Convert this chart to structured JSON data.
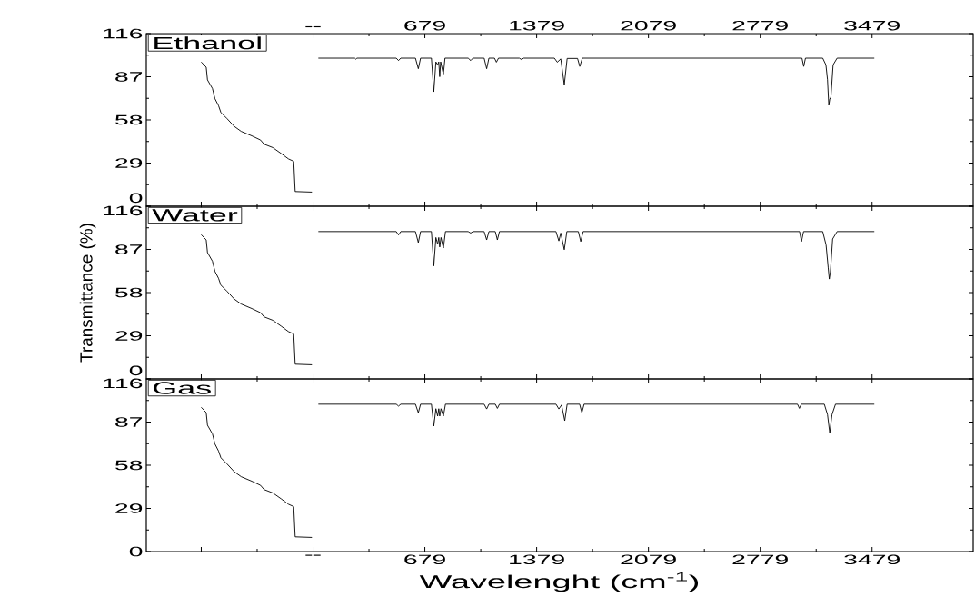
{
  "chart_data": [
    {
      "type": "line",
      "title": "Ethanol",
      "xlim": [
        -1065,
        4112
      ],
      "ylim": [
        0,
        116
      ],
      "yticks": [
        0,
        29,
        58,
        87,
        116
      ],
      "tick_labels": "y",
      "x2lim": [
        -1065,
        4112
      ],
      "x2ticks": [
        {
          "value": -721,
          "label": null
        },
        {
          "value": -21,
          "label": "--"
        },
        679,
        1379,
        2079,
        2779,
        3479
      ],
      "series": [
        {
          "color": "#000000",
          "x": [
            -721,
            -690,
            -682,
            -651,
            -635,
            -613,
            -598,
            -559,
            -515,
            -471,
            -405,
            -350,
            -328,
            -273,
            -219,
            -175,
            -142,
            -133,
            -28
          ],
          "values": [
            96.9,
            93.4,
            84.9,
            79.1,
            72.2,
            67.6,
            63.0,
            58.8,
            53.7,
            50.3,
            47.3,
            44.5,
            41.7,
            39.4,
            35.3,
            31.8,
            30.2,
            9.9,
            9.5
          ]
        },
        {
          "color": "#000000",
          "x": [
            12,
            240,
            247,
            254,
            500,
            514,
            528,
            620,
            638,
            652,
            720,
            735,
            748,
            759,
            766,
            772,
            778,
            795,
            805,
            950,
            966,
            980,
            1050,
            1066,
            1080,
            1115,
            1127,
            1140,
            1270,
            1284,
            1298,
            1490,
            1508,
            1530,
            1552,
            1570,
            1635,
            1649,
            1665,
            3040,
            3051,
            3062,
            3170,
            3190,
            3200,
            3208,
            3214,
            3221,
            3235,
            3260,
            3493
          ],
          "values": [
            99.5,
            99.5,
            98.8,
            99.5,
            99.5,
            97.9,
            99.5,
            99.5,
            92.4,
            99.5,
            99.5,
            76.9,
            97,
            95,
            97,
            87,
            97,
            88.8,
            99.5,
            99.5,
            97.9,
            99.5,
            99.5,
            92.4,
            99.5,
            99.5,
            96.8,
            99.5,
            99.5,
            98.6,
            99.5,
            99.5,
            96.8,
            99,
            81.6,
            99.3,
            99.3,
            93.9,
            99.5,
            99.5,
            93.9,
            99.5,
            99.5,
            95,
            85,
            67.8,
            72,
            73.2,
            95,
            99.5,
            99.5
          ]
        }
      ]
    },
    {
      "type": "line",
      "title": "Water",
      "ylabel": "Transmittance (%)",
      "xlim": [
        -1065,
        4112
      ],
      "ylim": [
        0,
        116
      ],
      "yticks": [
        0,
        29,
        58,
        87,
        116
      ],
      "tick_labels": "y",
      "series": [
        {
          "color": "#000000",
          "x": [
            -721,
            -690,
            -682,
            -651,
            -635,
            -613,
            -598,
            -559,
            -515,
            -471,
            -405,
            -350,
            -328,
            -273,
            -219,
            -175,
            -142,
            -133,
            -28
          ],
          "values": [
            96.9,
            93.4,
            84.9,
            79.1,
            72.2,
            67.6,
            63.0,
            58.8,
            53.7,
            50.3,
            47.3,
            44.5,
            41.7,
            39.4,
            35.3,
            31.8,
            30.2,
            9.9,
            9.5
          ]
        },
        {
          "color": "#000000",
          "x": [
            12,
            500,
            514,
            528,
            620,
            638,
            652,
            720,
            735,
            748,
            759,
            766,
            772,
            780,
            795,
            808,
            950,
            966,
            980,
            1050,
            1066,
            1080,
            1120,
            1133,
            1146,
            1500,
            1518,
            1530,
            1552,
            1568,
            1640,
            1655,
            1670,
            3025,
            3037,
            3050,
            3170,
            3191,
            3204,
            3211,
            3218,
            3232,
            3260,
            3493
          ],
          "values": [
            99,
            99,
            96.7,
            99,
            99,
            91.6,
            99,
            99,
            75.9,
            95,
            90.5,
            95,
            88.6,
            95,
            87.9,
            99,
            99,
            98,
            99,
            99,
            93.4,
            99,
            99,
            93.4,
            99,
            99,
            92.7,
            98,
            86.8,
            99,
            99,
            92.3,
            99,
            99,
            92.3,
            99,
            99,
            90,
            75,
            67.1,
            72,
            94,
            99,
            99
          ]
        }
      ]
    },
    {
      "type": "line",
      "title": "Gas",
      "xlabel": "Wavelenght (cm$^{-1}$)",
      "xlim": [
        -1065,
        4112
      ],
      "ylim": [
        0,
        116
      ],
      "yticks": [
        0,
        29,
        58,
        87,
        116
      ],
      "xticks": [
        {
          "value": -721,
          "label": null
        },
        {
          "value": -21,
          "label": "--"
        },
        679,
        1379,
        2079,
        2779,
        3479
      ],
      "series": [
        {
          "color": "#000000",
          "x": [
            -721,
            -690,
            -682,
            -651,
            -635,
            -613,
            -598,
            -559,
            -515,
            -471,
            -405,
            -350,
            -328,
            -273,
            -219,
            -175,
            -142,
            -133,
            -28
          ],
          "values": [
            96.9,
            93.4,
            84.9,
            79.1,
            72.2,
            67.6,
            63.0,
            58.8,
            53.7,
            50.3,
            47.3,
            44.5,
            41.7,
            39.4,
            35.3,
            31.8,
            30.2,
            9.9,
            9.5
          ]
        },
        {
          "color": "#000000",
          "x": [
            12,
            500,
            514,
            528,
            620,
            638,
            652,
            720,
            735,
            748,
            759,
            766,
            772,
            780,
            795,
            808,
            1050,
            1066,
            1080,
            1120,
            1133,
            1146,
            1500,
            1518,
            1535,
            1555,
            1570,
            1648,
            1662,
            1676,
            3012,
            3024,
            3036,
            3180,
            3200,
            3214,
            3228,
            3250,
            3493
          ],
          "values": [
            99,
            99,
            97.7,
            99,
            99,
            93.3,
            99,
            99,
            84.3,
            96,
            91,
            96,
            91,
            96,
            91,
            99,
            99,
            95.8,
            99,
            99,
            96.2,
            99,
            99,
            95.8,
            98.5,
            87.9,
            99,
            99,
            93.3,
            99,
            99,
            96.2,
            99,
            99,
            92,
            79.7,
            92,
            99,
            99
          ]
        }
      ]
    }
  ]
}
